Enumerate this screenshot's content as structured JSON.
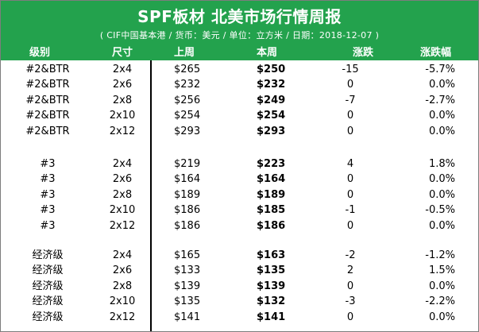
{
  "report": {
    "title": "SPF板材 北美市场行情周报",
    "subtitle": "( CIF中国基本港 / 货币：美元 / 单位：立方米 / 日期：2018-12-07 )"
  },
  "columns": {
    "grade": "级别",
    "size": "尺寸",
    "prev": "上周",
    "curr": "本周",
    "change": "涨跌",
    "pct": "涨跌幅"
  },
  "rows": [
    {
      "grade": "#2&BTR",
      "size": "2x4",
      "prev": "$265",
      "curr": "$250",
      "change": "-15",
      "pct": "-5.7%"
    },
    {
      "grade": "#2&BTR",
      "size": "2x6",
      "prev": "$232",
      "curr": "$232",
      "change": "0",
      "pct": "0.0%"
    },
    {
      "grade": "#2&BTR",
      "size": "2x8",
      "prev": "$256",
      "curr": "$249",
      "change": "-7",
      "pct": "-2.7%"
    },
    {
      "grade": "#2&BTR",
      "size": "2x10",
      "prev": "$254",
      "curr": "$254",
      "change": "0",
      "pct": "0.0%"
    },
    {
      "grade": "#2&BTR",
      "size": "2x12",
      "prev": "$293",
      "curr": "$293",
      "change": "0",
      "pct": "0.0%"
    },
    {
      "grade": "#3",
      "size": "2x4",
      "prev": "$219",
      "curr": "$223",
      "change": "4",
      "pct": "1.8%"
    },
    {
      "grade": "#3",
      "size": "2x6",
      "prev": "$164",
      "curr": "$164",
      "change": "0",
      "pct": "0.0%"
    },
    {
      "grade": "#3",
      "size": "2x8",
      "prev": "$189",
      "curr": "$189",
      "change": "0",
      "pct": "0.0%"
    },
    {
      "grade": "#3",
      "size": "2x10",
      "prev": "$186",
      "curr": "$185",
      "change": "-1",
      "pct": "-0.5%"
    },
    {
      "grade": "#3",
      "size": "2x12",
      "prev": "$186",
      "curr": "$186",
      "change": "0",
      "pct": "0.0%"
    },
    {
      "grade": "经济级",
      "size": "2x4",
      "prev": "$165",
      "curr": "$163",
      "change": "-2",
      "pct": "-1.2%"
    },
    {
      "grade": "经济级",
      "size": "2x6",
      "prev": "$133",
      "curr": "$135",
      "change": "2",
      "pct": "1.5%"
    },
    {
      "grade": "经济级",
      "size": "2x8",
      "prev": "$139",
      "curr": "$139",
      "change": "0",
      "pct": "0.0%"
    },
    {
      "grade": "经济级",
      "size": "2x10",
      "prev": "$135",
      "curr": "$132",
      "change": "-3",
      "pct": "-2.2%"
    },
    {
      "grade": "经济级",
      "size": "2x12",
      "prev": "$141",
      "curr": "$141",
      "change": "0",
      "pct": "0.0%"
    }
  ],
  "colors": {
    "banner": "#23a24d",
    "banner_text": "#ffffff",
    "body_text": "#000000"
  }
}
